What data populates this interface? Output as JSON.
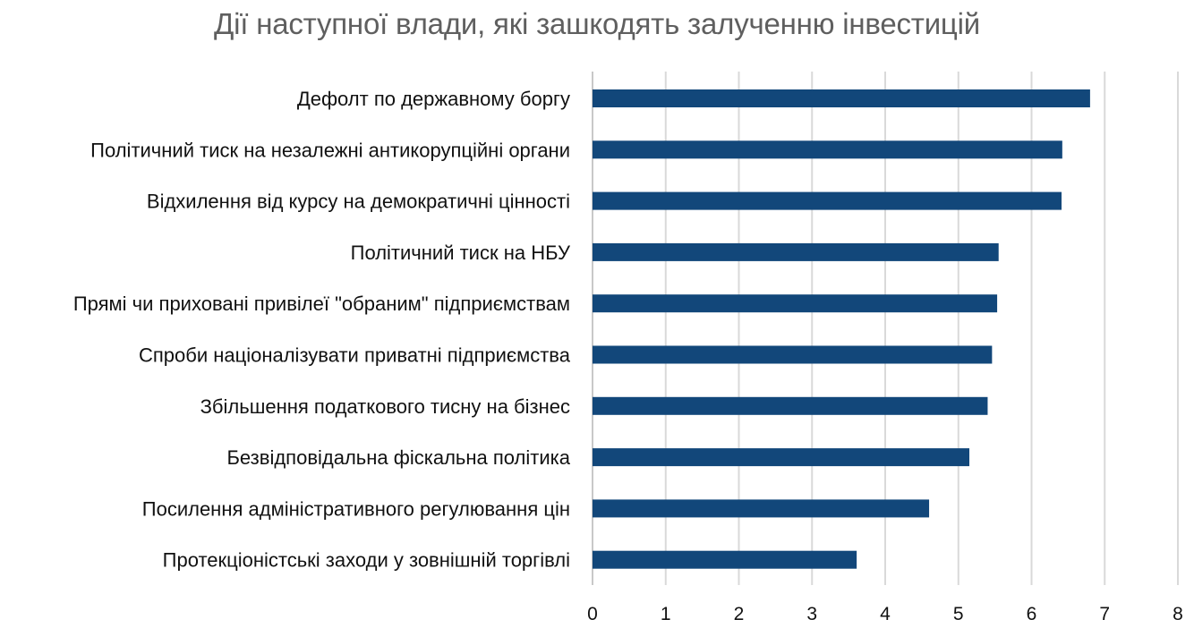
{
  "chart_data": {
    "type": "bar",
    "orientation": "horizontal",
    "title": "Дії наступної влади, які зашкодять залученню інвестицій",
    "xlabel": "",
    "ylabel": "",
    "categories": [
      "Дефолт по державному боргу",
      "Політичний тиск  на незалежні антикорупційні органи",
      "Відхилення від курсу на демократичні цінності ",
      "Політичний тиск на НБУ ",
      "Прямі чи приховані привілеї \"обраним\" підприємствам ",
      "Спроби націоналізувати приватні підприємства",
      "Збільшення податкового тиснy на бізнес",
      "Безвідповідальна фіскальна політика",
      "Посилення адміністративного регулювання цін ",
      "Протекціоністські заходи у зовнішній торгівлі"
    ],
    "values": [
      6.8,
      6.42,
      6.41,
      5.55,
      5.53,
      5.46,
      5.4,
      5.15,
      4.6,
      3.61
    ],
    "xlim": [
      0,
      8
    ],
    "x_ticks": [
      "0",
      "1",
      "2",
      "3",
      "4",
      "5",
      "6",
      "7",
      "8"
    ],
    "grid": "vertical",
    "bar_color": "#12477a",
    "grid_color": "#d9d9d9"
  }
}
